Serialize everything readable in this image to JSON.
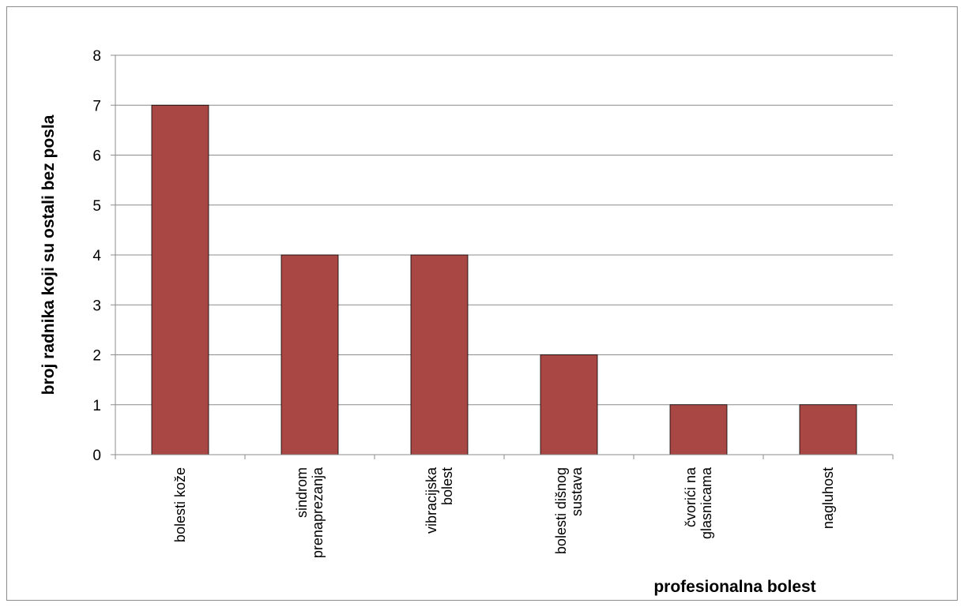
{
  "chart_data": {
    "type": "bar",
    "categories": [
      [
        "bolesti kože"
      ],
      [
        "sindrom",
        "prenaprezanja"
      ],
      [
        "vibracijska",
        "bolest"
      ],
      [
        "bolesti dišnog",
        "sustava"
      ],
      [
        "čvorići na",
        "glasnicama"
      ],
      [
        "nagluhost"
      ]
    ],
    "values": [
      7,
      4,
      4,
      2,
      1,
      1
    ],
    "xlabel": "profesionalna bolest",
    "ylabel": "broj radnika koji su ostali bez posla",
    "ylim": [
      0,
      8
    ],
    "yticks": [
      "0",
      "1",
      "2",
      "3",
      "4",
      "5",
      "6",
      "7",
      "8"
    ],
    "grid": true,
    "legend": "none",
    "colors": {
      "bar": "#a94744",
      "bar_edge": "#000000",
      "grid": "#8c8c8c",
      "axis": "#8c8c8c"
    }
  }
}
